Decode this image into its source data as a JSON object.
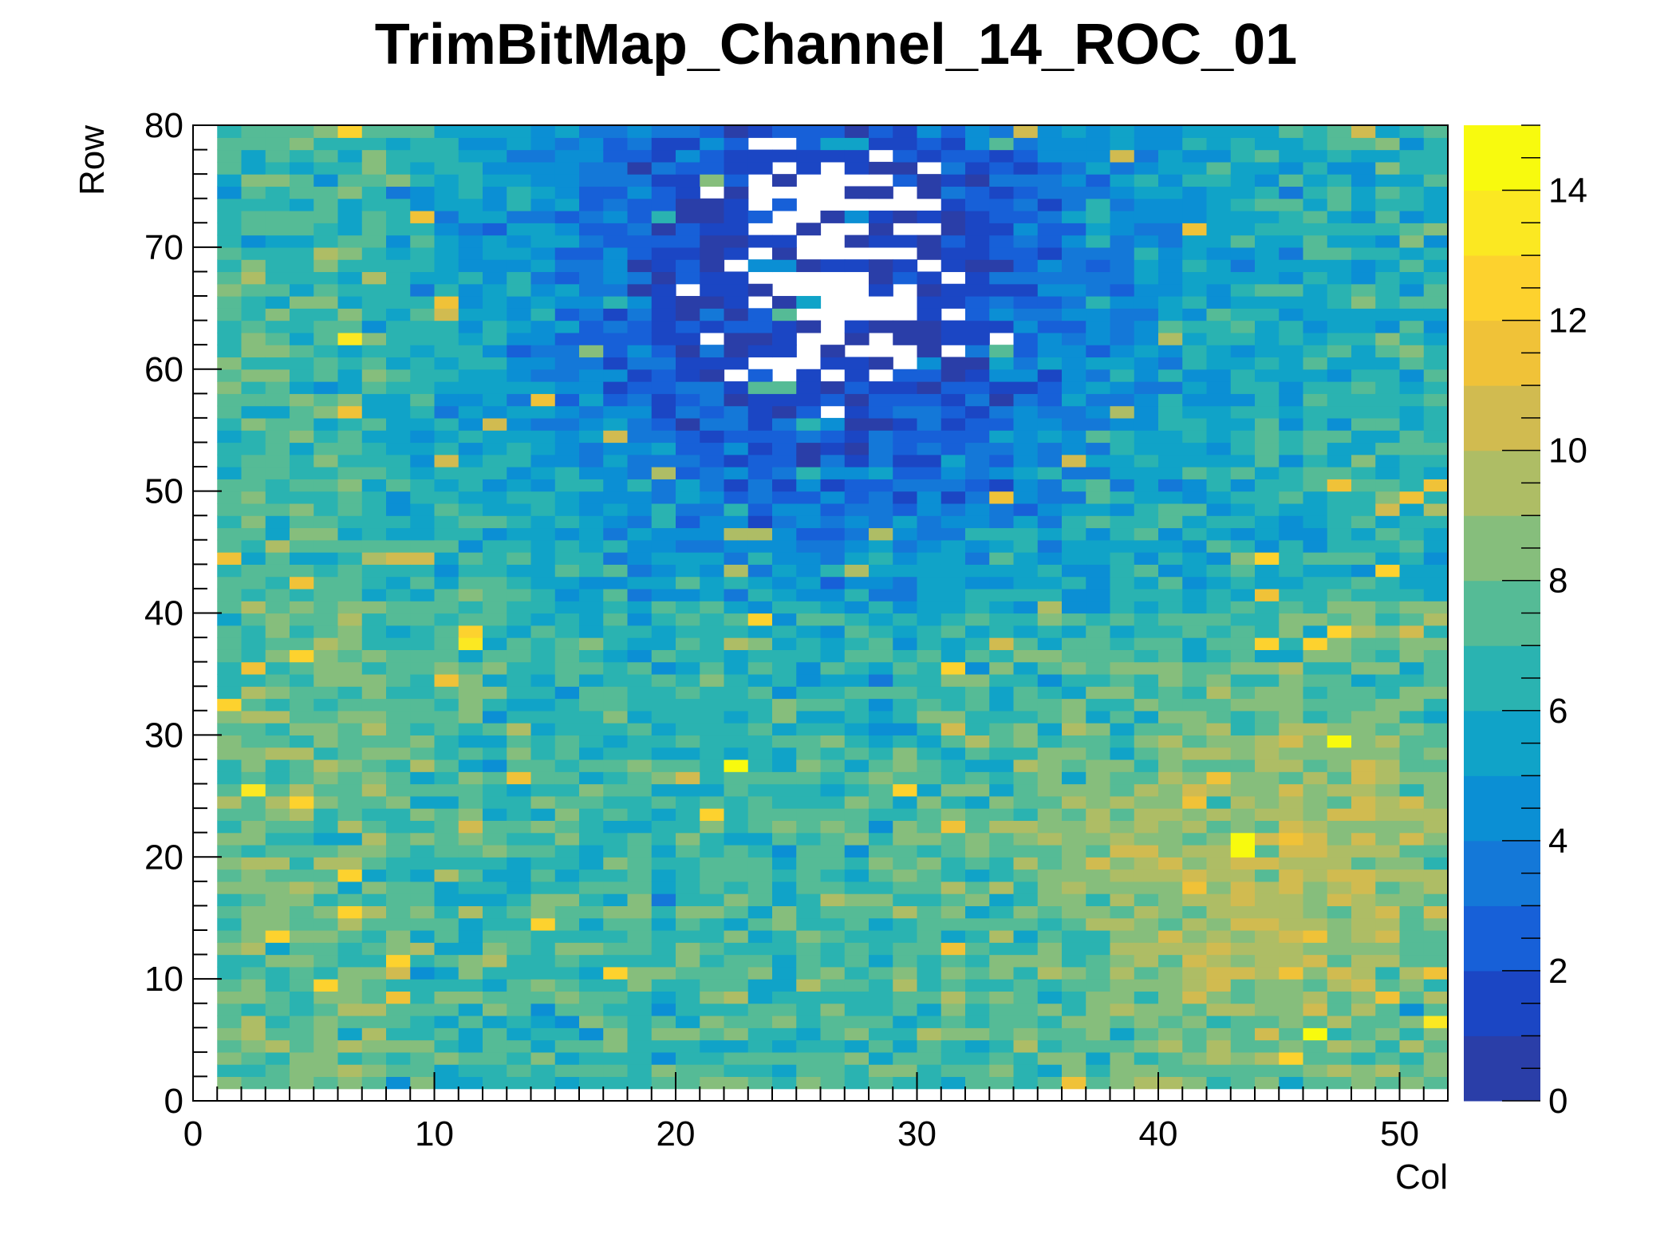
{
  "chart_data": {
    "type": "heatmap",
    "title": "TrimBitMap_Channel_14_ROC_01",
    "xlabel": "Col",
    "ylabel": "Row",
    "xlim": [
      0,
      52
    ],
    "ylim": [
      0,
      80
    ],
    "x_ticks": [
      "0",
      "10",
      "20",
      "30",
      "40",
      "50"
    ],
    "y_ticks": [
      "0",
      "10",
      "20",
      "30",
      "40",
      "50",
      "60",
      "70",
      "80"
    ],
    "colorbar": {
      "range": [
        0,
        15
      ],
      "ticks": [
        "0",
        "2",
        "4",
        "6",
        "8",
        "10",
        "12",
        "14"
      ],
      "palette": [
        "#2a3ea8",
        "#1b46c4",
        "#1760d8",
        "#1478d8",
        "#0b8fd4",
        "#10a3c8",
        "#2ab3b1",
        "#55bb96",
        "#86be7c",
        "#aebd65",
        "#d1bb50",
        "#f0c238",
        "#fdd22e",
        "#fbe822",
        "#f8fa0e"
      ]
    },
    "grid": false,
    "legend": "colorbar-right",
    "data_extent": {
      "cols": [
        1,
        51
      ],
      "rows": [
        1,
        79
      ]
    },
    "cell_values": "Each cell (column 1–51, row 1–79) holds a trim-bit value from 0 to 15. Broad pattern: low values (0–3) concentrated in a region spanning columns ~15–35 at rows ~45–79, with some empty (white) cells; mid values (5–8) across rows 20–45; higher values (9–13) toward the lower-right, columns ~38–51 and rows ~5–30; scattered 12–15 outliers throughout."
  },
  "colors": {
    "background": "#ffffff",
    "axis": "#000000"
  }
}
